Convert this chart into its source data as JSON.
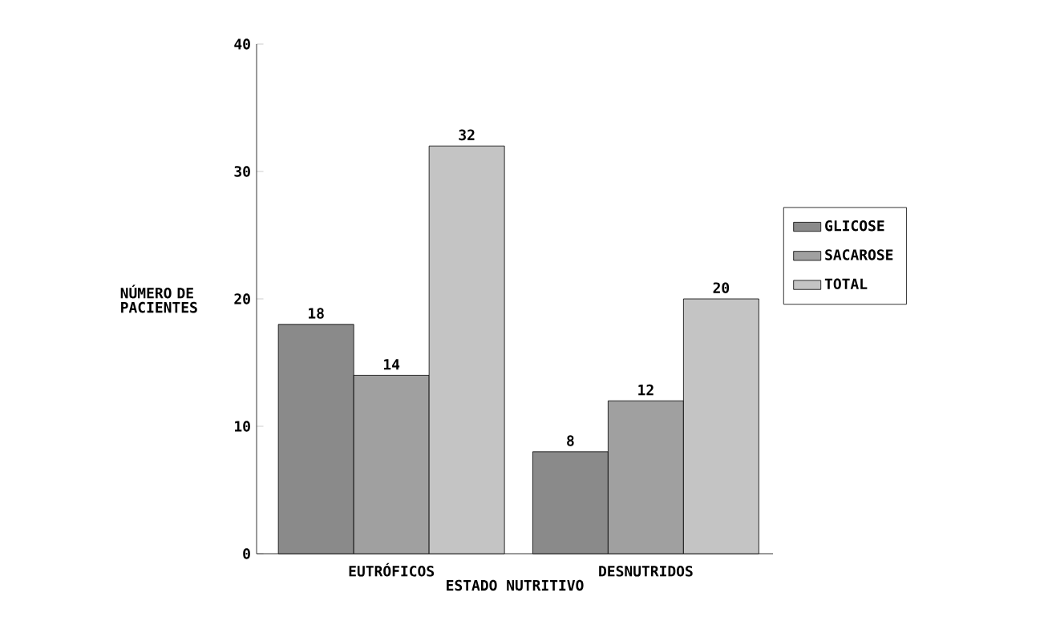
{
  "chart_data": {
    "type": "bar",
    "categories": [
      "EUTRÓFICOS",
      "DESNUTRIDOS"
    ],
    "series": [
      {
        "name": "GLICOSE",
        "color": "#8a8a8a",
        "values": [
          18,
          8
        ]
      },
      {
        "name": "SACAROSE",
        "color": "#a0a0a0",
        "values": [
          14,
          12
        ]
      },
      {
        "name": "TOTAL",
        "color": "#c4c4c4",
        "values": [
          32,
          20
        ]
      }
    ],
    "xlabel": "ESTADO NUTRITIVO",
    "ylabel": "NÚMERO DE PACIENTES",
    "ylim": [
      0,
      40
    ],
    "yticks": [
      0,
      10,
      20,
      30,
      40
    ],
    "data_labels": true,
    "legend": "right"
  }
}
